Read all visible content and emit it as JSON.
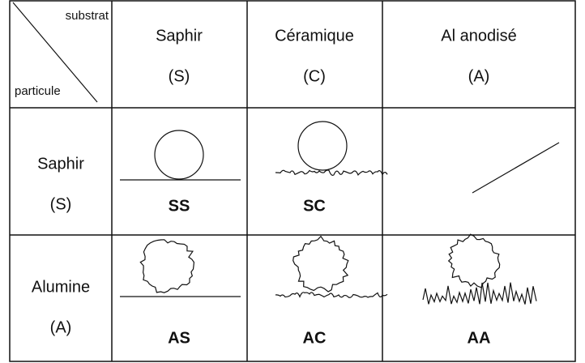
{
  "table": {
    "corner": {
      "column_label": "substrat",
      "row_label": "particule"
    },
    "columns": [
      {
        "name": "Saphir",
        "code": "(S)"
      },
      {
        "name": "Céramique",
        "code": "(C)"
      },
      {
        "name": "Al anodisé",
        "code": "(A)"
      }
    ],
    "rows": [
      {
        "name": "Saphir",
        "code": "(S)",
        "cells": [
          "SS",
          "SC",
          null
        ]
      },
      {
        "name": "Alumine",
        "code": "(A)",
        "cells": [
          "AS",
          "AC",
          "AA"
        ]
      }
    ]
  }
}
